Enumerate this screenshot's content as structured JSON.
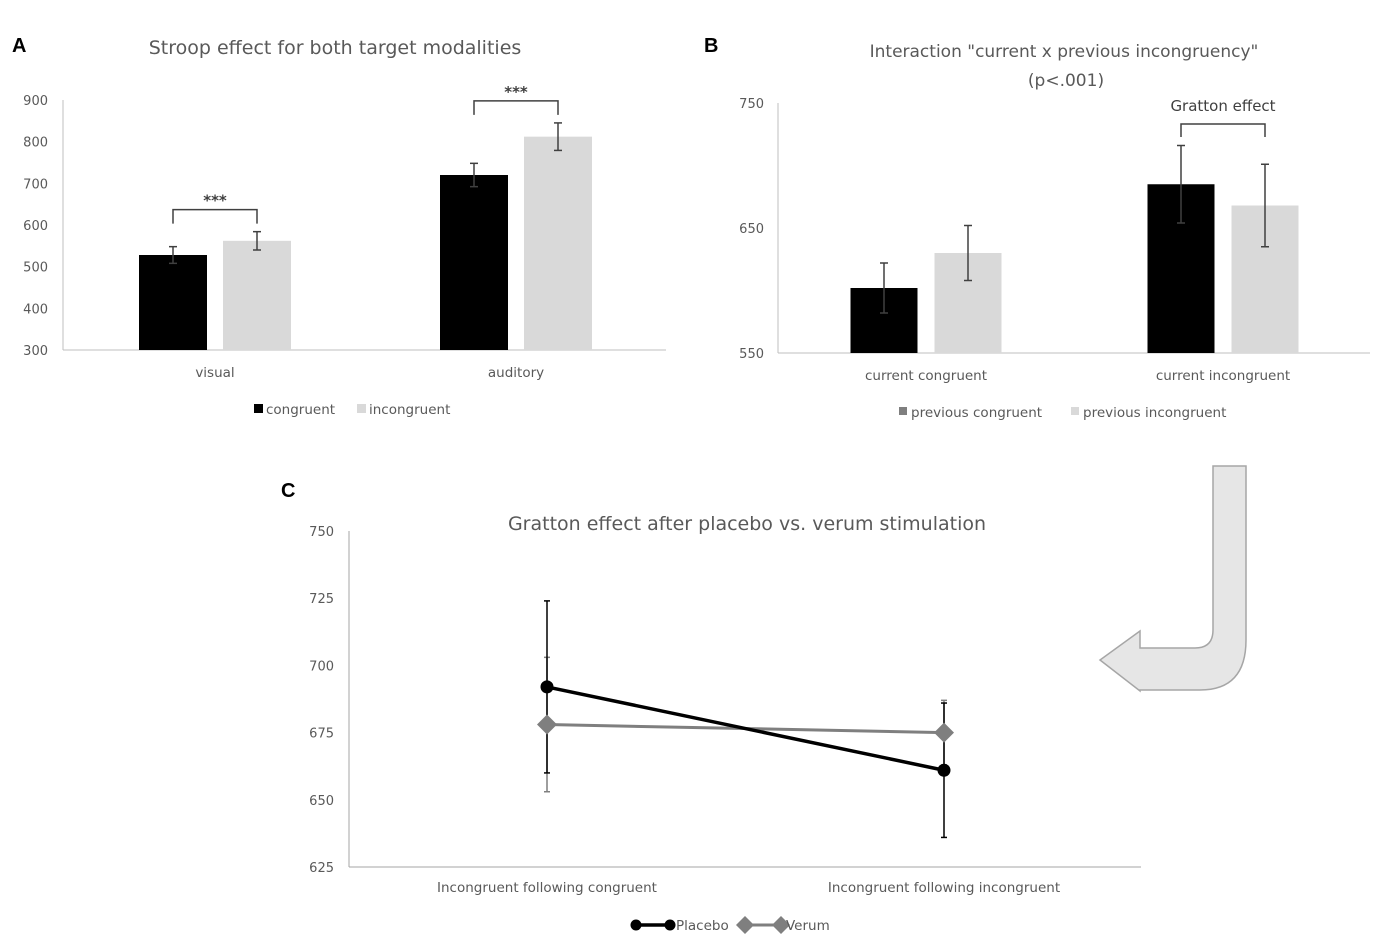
{
  "colors": {
    "black": "#000000",
    "light": "#d9d9d9",
    "dark_gray": "#7f7f7f",
    "axis": "#bfbfbf",
    "arrow_fill": "#e6e6e6",
    "arrow_stroke": "#a6a6a6"
  },
  "decor": {
    "arrow": "curved-arrow-icon"
  },
  "chart_data": [
    {
      "panel": "A",
      "type": "bar",
      "title": "Stroop effect for both target modalities",
      "categories": [
        "visual",
        "auditory"
      ],
      "ylim": [
        300,
        900
      ],
      "yticks": [
        300,
        400,
        500,
        600,
        700,
        800,
        900
      ],
      "series": [
        {
          "name": "congruent",
          "color": "#000000",
          "values": [
            528,
            720
          ],
          "errors": [
            20,
            28
          ]
        },
        {
          "name": "incongruent",
          "color": "#d9d9d9",
          "values": [
            562,
            812
          ],
          "errors": [
            22,
            33
          ]
        }
      ],
      "significance": [
        {
          "category": "visual",
          "label": "***"
        },
        {
          "category": "auditory",
          "label": "***"
        }
      ],
      "legend": "bottom",
      "grid": false
    },
    {
      "panel": "B",
      "type": "bar",
      "title": "Interaction \"current x previous incongruency\"",
      "subtitle": "(p<.001)",
      "categories": [
        "current congruent",
        "current incongruent"
      ],
      "ylim": [
        550,
        750
      ],
      "yticks": [
        550,
        650,
        750
      ],
      "series": [
        {
          "name": "previous congruent",
          "color": "#000000",
          "legend_color": "#7f7f7f",
          "values": [
            602,
            685
          ],
          "errors": [
            20,
            31
          ]
        },
        {
          "name": "previous incongruent",
          "color": "#d9d9d9",
          "values": [
            630,
            668
          ],
          "errors": [
            22,
            33
          ]
        }
      ],
      "annotation": {
        "category": "current incongruent",
        "label": "Gratton effect"
      },
      "legend": "bottom",
      "grid": false
    },
    {
      "panel": "C",
      "type": "line",
      "title": "Gratton effect after placebo vs. verum stimulation",
      "categories": [
        "Incongruent following congruent",
        "Incongruent following incongruent"
      ],
      "ylim": [
        625,
        750
      ],
      "yticks": [
        625,
        650,
        675,
        700,
        725,
        750
      ],
      "series": [
        {
          "name": "Placebo",
          "color": "#000000",
          "marker": "circle",
          "values": [
            692,
            661
          ],
          "errors": [
            32,
            25
          ]
        },
        {
          "name": "Verum",
          "color": "#7f7f7f",
          "marker": "diamond",
          "values": [
            678,
            675
          ],
          "errors": [
            25,
            12
          ]
        }
      ],
      "legend": "bottom",
      "grid": false
    }
  ]
}
